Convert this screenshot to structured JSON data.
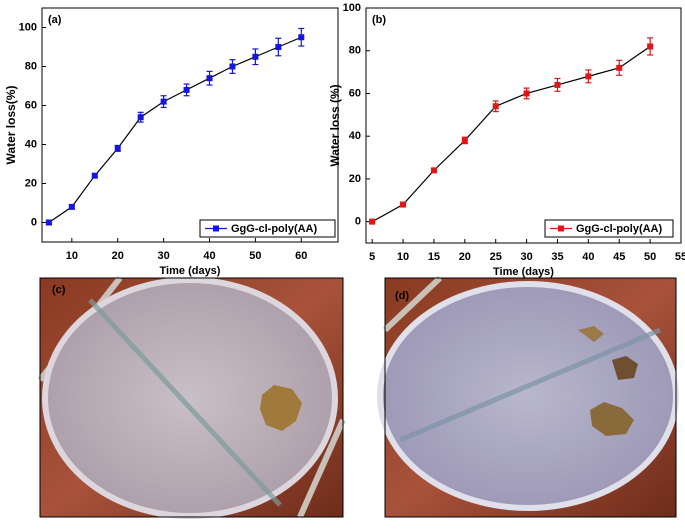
{
  "chart_data": [
    {
      "type": "line",
      "panel_label": "(a)",
      "x_label": "Time (days)",
      "y_label": "Water loss(%)",
      "x": [
        5,
        10,
        15,
        20,
        25,
        30,
        35,
        40,
        45,
        50,
        55,
        60
      ],
      "series": [
        {
          "name": "GgG-cl-poly(AA)",
          "color": "#1515e0",
          "values": [
            0,
            8,
            24,
            38,
            54,
            62,
            68,
            74,
            80,
            85,
            90,
            95
          ],
          "errors": [
            1,
            1,
            1,
            1.5,
            2.5,
            3,
            3,
            3.5,
            3.5,
            4,
            4.5,
            4.5
          ]
        }
      ],
      "xlim": [
        3.5,
        68
      ],
      "xticks": [
        10,
        20,
        30,
        40,
        50,
        60
      ],
      "ylim": [
        -10,
        110
      ],
      "yticks": [
        0,
        20,
        40,
        60,
        80,
        100
      ]
    },
    {
      "type": "line",
      "panel_label": "(b)",
      "x_label": "Time (days)",
      "y_label": "Water loss (%)",
      "x": [
        5,
        10,
        15,
        20,
        25,
        30,
        35,
        40,
        45,
        50
      ],
      "series": [
        {
          "name": "GgG-cl-poly(AA)",
          "color": "#e01515",
          "values": [
            0,
            8,
            24,
            38,
            54,
            60,
            64,
            68,
            72,
            82
          ],
          "errors": [
            1,
            1,
            1,
            1.5,
            2.5,
            2.5,
            3,
            3,
            3.5,
            4
          ]
        }
      ],
      "xlim": [
        4,
        55
      ],
      "xticks": [
        5,
        10,
        15,
        20,
        25,
        30,
        35,
        40,
        45,
        50,
        55
      ],
      "ylim": [
        -10,
        100
      ],
      "yticks": [
        0,
        20,
        40,
        60,
        80,
        100
      ]
    }
  ],
  "photos": [
    {
      "label": "(c)"
    },
    {
      "label": "(d)"
    }
  ]
}
